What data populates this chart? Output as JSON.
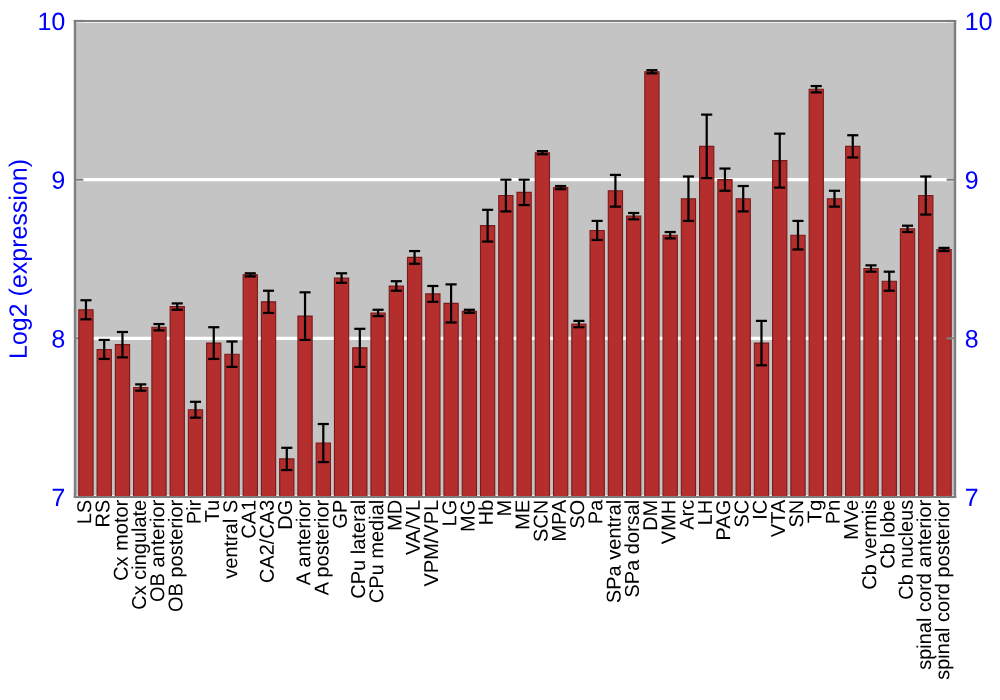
{
  "chart_data": {
    "type": "bar",
    "ylabel": "Log2 (expression)",
    "categories": [
      "LS",
      "RS",
      "Cx motor",
      "Cx cingulate",
      "OB anterior",
      "OB posterior",
      "Pir",
      "Tu",
      "ventral S",
      "CA1",
      "CA2/CA3",
      "DG",
      "A anterior",
      "A posterior",
      "GP",
      "CPu lateral",
      "CPu medial",
      "MD",
      "VA/VL",
      "VPM/VPL",
      "LG",
      "MG",
      "Hb",
      "M",
      "ME",
      "SCN",
      "MPA",
      "SO",
      "Pa",
      "SPa ventral",
      "SPa dorsal",
      "DM",
      "VMH",
      "Arc",
      "LH",
      "PAG",
      "SC",
      "IC",
      "VTA",
      "SN",
      "Tg",
      "Pn",
      "MVe",
      "Cb vermis",
      "Cb lobe",
      "Cb nucleus",
      "spinal cord anterior",
      "spinal cord posterior"
    ],
    "values": [
      8.18,
      7.93,
      7.96,
      7.69,
      8.07,
      8.2,
      7.55,
      7.97,
      7.9,
      8.4,
      8.23,
      7.24,
      8.14,
      7.34,
      8.38,
      7.94,
      8.16,
      8.33,
      8.51,
      8.28,
      8.22,
      8.17,
      8.71,
      8.9,
      8.92,
      9.17,
      8.95,
      8.09,
      8.68,
      8.93,
      8.77,
      9.68,
      8.65,
      8.88,
      9.21,
      9.0,
      8.88,
      7.97,
      9.12,
      8.65,
      9.57,
      8.88,
      9.21,
      8.44,
      8.36,
      8.69,
      8.9,
      8.56
    ],
    "errors": [
      0.06,
      0.06,
      0.08,
      0.02,
      0.02,
      0.02,
      0.05,
      0.1,
      0.08,
      0.01,
      0.07,
      0.07,
      0.15,
      0.12,
      0.03,
      0.12,
      0.02,
      0.03,
      0.04,
      0.05,
      0.12,
      0.01,
      0.1,
      0.1,
      0.08,
      0.01,
      0.01,
      0.02,
      0.06,
      0.1,
      0.02,
      0.01,
      0.02,
      0.14,
      0.2,
      0.07,
      0.08,
      0.14,
      0.17,
      0.09,
      0.02,
      0.05,
      0.07,
      0.02,
      0.06,
      0.02,
      0.12,
      0.01
    ],
    "color": "#b52e2e",
    "ylim": [
      7,
      10
    ],
    "yticks": [
      7,
      8,
      9,
      10
    ],
    "y2lim": [
      7,
      10
    ],
    "y2ticks": [
      7,
      8,
      9,
      10
    ],
    "grid": "y"
  }
}
